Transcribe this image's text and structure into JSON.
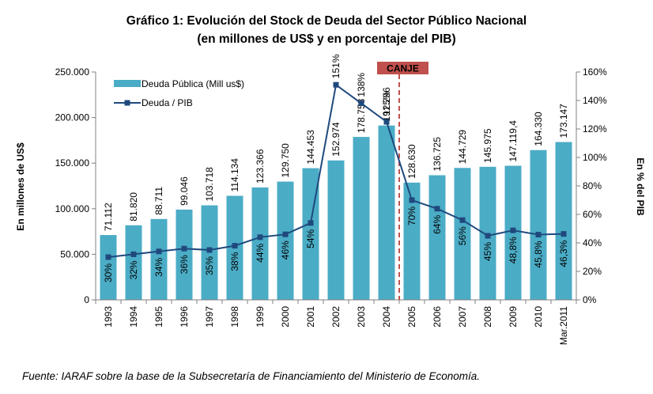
{
  "chart_data": {
    "type": "bar",
    "title": "Gráfico 1: Evolución del Stock de Deuda del Sector Público Nacional",
    "subtitle": "(en millones de US$ y en porcentaje del PIB)",
    "ylabel": "En millones de US$",
    "y2label": "En % del PIB",
    "ylim": [
      0,
      250000
    ],
    "y2lim": [
      0,
      160
    ],
    "y_ticks": [
      "0",
      "50.000",
      "100.000",
      "150.000",
      "200.000",
      "250.000"
    ],
    "y2_ticks": [
      "0%",
      "20%",
      "40%",
      "60%",
      "80%",
      "100%",
      "120%",
      "140%",
      "160%"
    ],
    "categories": [
      "1993",
      "1994",
      "1995",
      "1996",
      "1997",
      "1998",
      "1999",
      "2000",
      "2001",
      "2002",
      "2003",
      "2004",
      "2005",
      "2006",
      "2007",
      "2008",
      "2009",
      "2010",
      "Mar.2011"
    ],
    "series": [
      {
        "name": "Deuda Pública (Mill us$)",
        "type": "bar",
        "axis": "left",
        "color": "#4bacc6",
        "values": [
          71112,
          81820,
          88711,
          99046,
          103718,
          114134,
          123366,
          129750,
          144453,
          152974,
          178758,
          191296,
          128630,
          136725,
          144729,
          145975,
          147119.4,
          164330,
          173147
        ],
        "labels": [
          "71.112",
          "81.820",
          "88.711",
          "99.046",
          "103.718",
          "114.134",
          "123.366",
          "129.750",
          "144.453",
          "152.974",
          "178.758",
          "191.296",
          "128.630",
          "136.725",
          "144.729",
          "145.975",
          "147.119,4",
          "164.330",
          "173.147"
        ]
      },
      {
        "name": "Deuda / PIB",
        "type": "line",
        "axis": "right",
        "color": "#1f497d",
        "values": [
          30,
          32,
          34,
          36,
          35,
          38,
          44,
          46,
          54,
          151,
          138,
          125,
          70,
          64,
          56,
          45,
          48.8,
          45.8,
          46.3
        ],
        "labels": [
          "30%",
          "32%",
          "34%",
          "36%",
          "35%",
          "38%",
          "44%",
          "46%",
          "54%",
          "151%",
          "138%",
          "125%",
          "70%",
          "64%",
          "56%",
          "45%",
          "48,8%",
          "45,8%",
          "46,3%"
        ]
      }
    ],
    "annotation": {
      "text": "CANJE",
      "between": [
        "2004",
        "2005"
      ],
      "color": "#c0504d"
    },
    "legend": "top-left",
    "grid": false
  },
  "source": "Fuente: IARAF sobre la base de la Subsecretaría de Financiamiento del Ministerio de Economía."
}
